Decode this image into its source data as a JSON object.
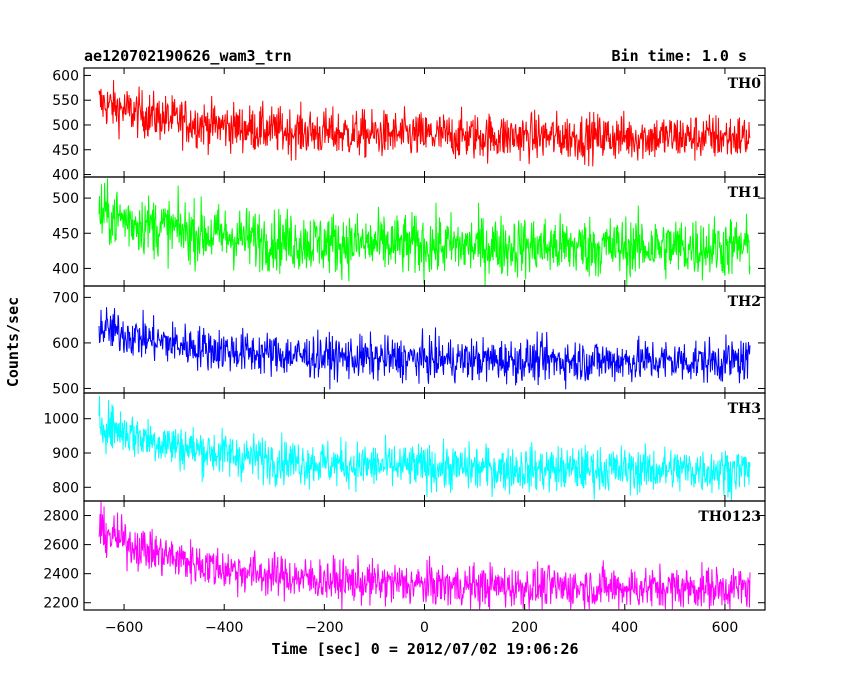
{
  "header": {
    "title": "ae120702190626_wam3_trn",
    "bin_time": "Bin time: 1.0 s"
  },
  "chart_data": {
    "type": "line",
    "xlabel": "Time [sec] 0 = 2012/07/02 19:06:26",
    "ylabel": "Counts/sec",
    "xlim": [
      -680,
      680
    ],
    "xticks": [
      -600,
      -400,
      -200,
      0,
      200,
      400,
      600
    ],
    "x_range": [
      -650,
      650
    ],
    "panels": [
      {
        "name": "TH0",
        "color": "#ff0000",
        "ylim": [
          395,
          615
        ],
        "yticks": [
          400,
          450,
          500,
          550,
          600
        ],
        "start": 545,
        "end": 475,
        "decay": 220,
        "noise": 24,
        "min": 395,
        "max": 612
      },
      {
        "name": "TH1",
        "color": "#00ff00",
        "ylim": [
          375,
          530
        ],
        "yticks": [
          400,
          450,
          500
        ],
        "start": 480,
        "end": 430,
        "decay": 220,
        "noise": 22,
        "min": 376,
        "max": 528
      },
      {
        "name": "TH2",
        "color": "#0000ff",
        "ylim": [
          490,
          725
        ],
        "yticks": [
          500,
          600,
          700
        ],
        "start": 635,
        "end": 560,
        "decay": 220,
        "noise": 24,
        "min": 492,
        "max": 722
      },
      {
        "name": "TH3",
        "color": "#00ffff",
        "ylim": [
          760,
          1075
        ],
        "yticks": [
          800,
          900,
          1000
        ],
        "start": 990,
        "end": 850,
        "decay": 230,
        "noise": 34,
        "min": 762,
        "max": 1072
      },
      {
        "name": "TH0123",
        "color": "#ff00ff",
        "ylim": [
          2150,
          2900
        ],
        "yticks": [
          2200,
          2400,
          2600,
          2800
        ],
        "start": 2700,
        "end": 2300,
        "decay": 230,
        "noise": 75,
        "min": 2155,
        "max": 2895
      }
    ]
  }
}
